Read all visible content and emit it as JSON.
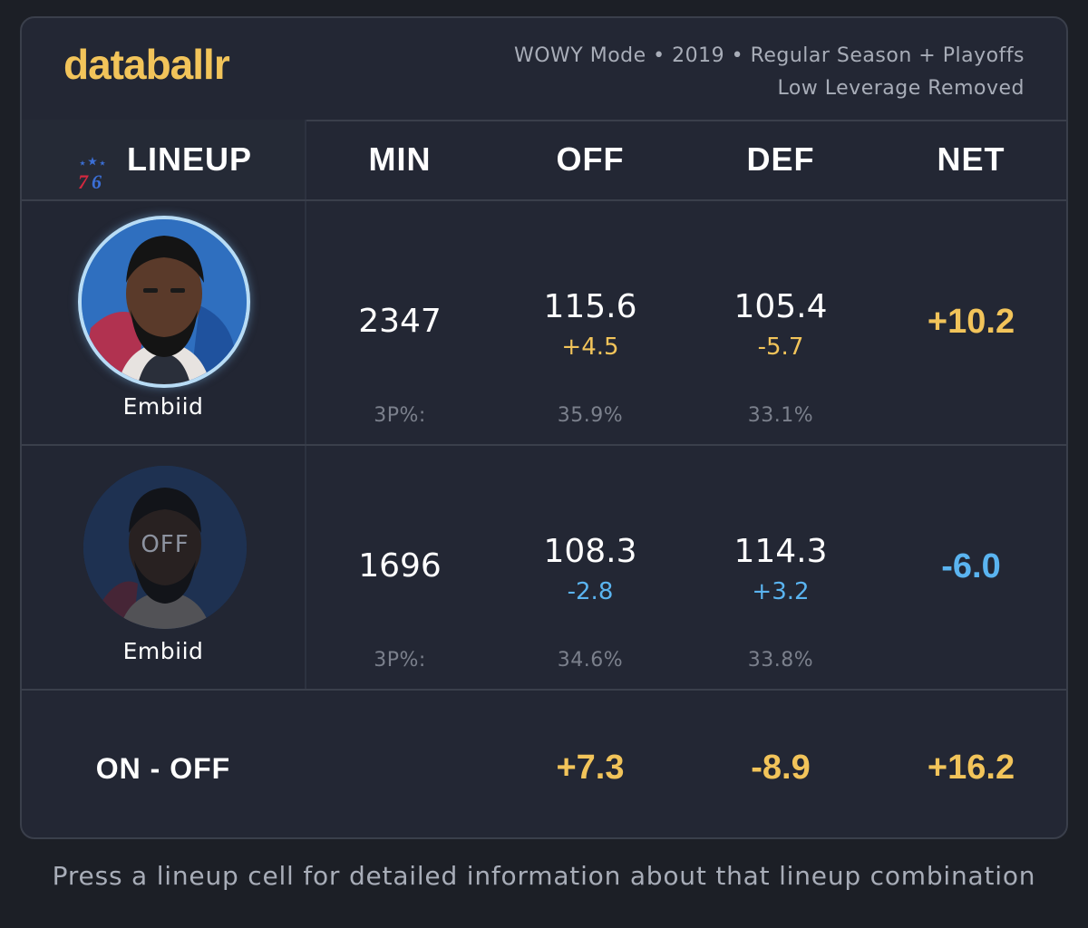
{
  "brand": {
    "logo_text": "databallr",
    "logo_color": "#f2c45a"
  },
  "header": {
    "meta_line1": "WOWY Mode • 2019 • Regular Season + Playoffs",
    "meta_line2": "Low Leverage Removed"
  },
  "columns": {
    "lineup": "LINEUP",
    "min": "MIN",
    "off": "OFF",
    "def": "DEF",
    "net": "NET",
    "team_logo_icon": "sixers-76-logo-icon"
  },
  "rows": [
    {
      "player": "Embiid",
      "status": "on",
      "min": "2347",
      "off": "115.6",
      "off_delta": "+4.5",
      "def": "105.4",
      "def_delta": "-5.7",
      "net": "+10.2",
      "three_label": "3P%:",
      "off_3p": "35.9%",
      "def_3p": "33.1%"
    },
    {
      "player": "Embiid",
      "status": "off",
      "off_badge": "OFF",
      "min": "1696",
      "off": "108.3",
      "off_delta": "-2.8",
      "def": "114.3",
      "def_delta": "+3.2",
      "net": "-6.0",
      "three_label": "3P%:",
      "off_3p": "34.6%",
      "def_3p": "33.8%"
    }
  ],
  "on_off": {
    "label": "ON - OFF",
    "off": "+7.3",
    "def": "-8.9",
    "net": "+16.2"
  },
  "footer": {
    "hint": "Press a lineup cell for detailed information about that lineup combination"
  },
  "colors": {
    "positive": "#f2c45a",
    "negative": "#5ab4f0",
    "background": "#1c1f26",
    "card": "#232734"
  }
}
